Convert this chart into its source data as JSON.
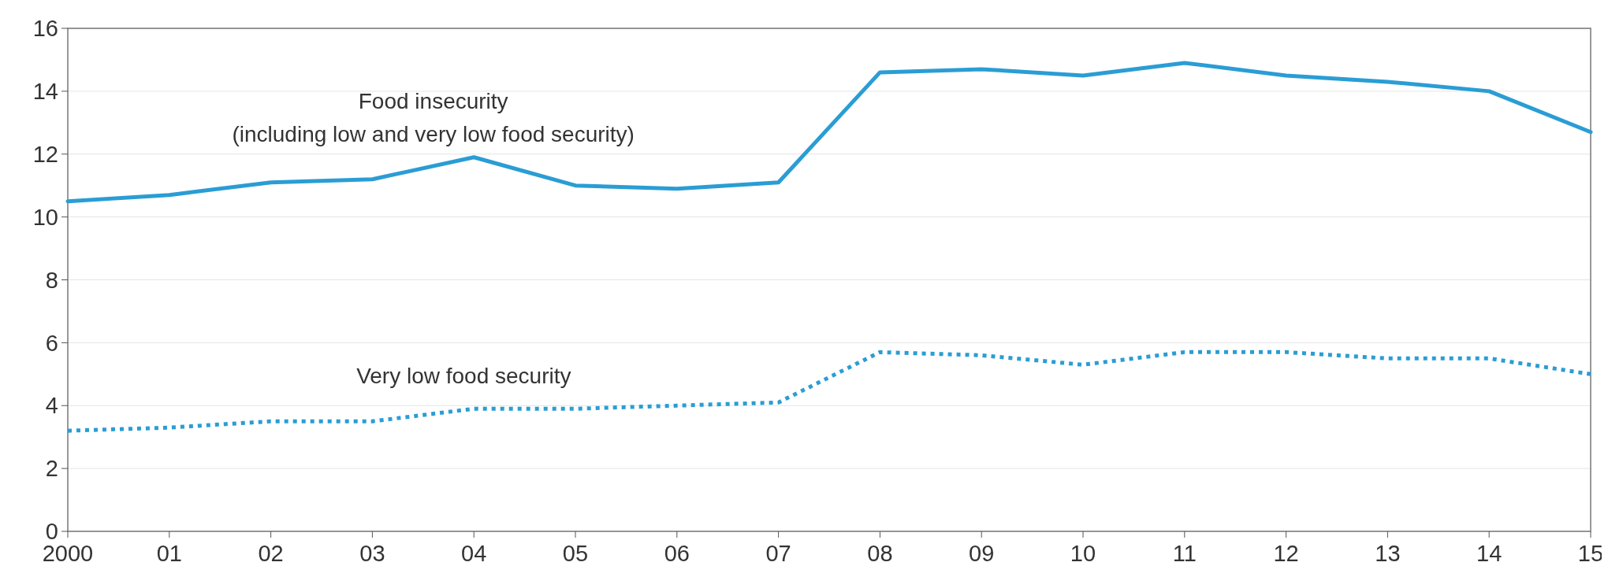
{
  "chart_data": {
    "type": "line",
    "x": [
      2000,
      2001,
      2002,
      2003,
      2004,
      2005,
      2006,
      2007,
      2008,
      2009,
      2010,
      2011,
      2012,
      2013,
      2014,
      2015
    ],
    "series": [
      {
        "name": "Food insecurity\n(including low and very low food security)",
        "color": "#2a9dd4",
        "line_style": "solid",
        "values": [
          10.5,
          10.7,
          11.1,
          11.2,
          11.9,
          11.0,
          10.9,
          11.1,
          14.6,
          14.7,
          14.5,
          14.9,
          14.5,
          14.3,
          14.0,
          12.7
        ]
      },
      {
        "name": "Very low food security",
        "color": "#2a9dd4",
        "line_style": "dotted",
        "values": [
          3.2,
          3.3,
          3.5,
          3.5,
          3.9,
          3.9,
          4.0,
          4.1,
          5.7,
          5.6,
          5.3,
          5.7,
          5.7,
          5.5,
          5.5,
          5.0
        ]
      }
    ],
    "xlim": [
      2000,
      2015
    ],
    "xticks": [
      {
        "value": 2000,
        "label": "2000"
      },
      {
        "value": 2001,
        "label": "01"
      },
      {
        "value": 2002,
        "label": "02"
      },
      {
        "value": 2003,
        "label": "03"
      },
      {
        "value": 2004,
        "label": "04"
      },
      {
        "value": 2005,
        "label": "05"
      },
      {
        "value": 2006,
        "label": "06"
      },
      {
        "value": 2007,
        "label": "07"
      },
      {
        "value": 2008,
        "label": "08"
      },
      {
        "value": 2009,
        "label": "09"
      },
      {
        "value": 2010,
        "label": "10"
      },
      {
        "value": 2011,
        "label": "11"
      },
      {
        "value": 2012,
        "label": "12"
      },
      {
        "value": 2013,
        "label": "13"
      },
      {
        "value": 2014,
        "label": "14"
      },
      {
        "value": 2015,
        "label": "15"
      }
    ],
    "ylim": [
      0,
      16
    ],
    "yticks": [
      0,
      2,
      4,
      6,
      8,
      10,
      12,
      14,
      16
    ],
    "grid": "y"
  }
}
